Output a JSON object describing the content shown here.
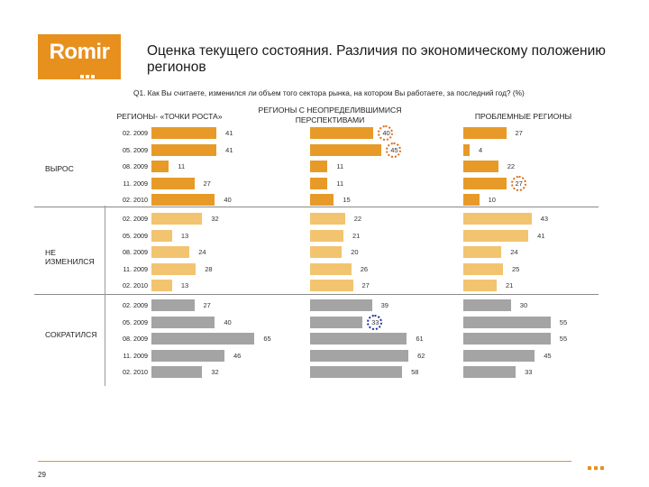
{
  "logo": {
    "text": "Romir"
  },
  "title": "Оценка текущего состояния. Различия по экономическому положению регионов",
  "question": "Q1. Как Вы считаете, изменился ли объем того сектора рынка, на котором Вы работаете, за последний год? (%)",
  "page_number": "29",
  "colors": {
    "increase": "#e89a28",
    "no_change": "#f2c470",
    "decrease": "#a4a4a4",
    "highlight_orange": "#d66d1f",
    "highlight_blue": "#1d2ea6"
  },
  "chart_data": {
    "type": "bar",
    "orientation": "horizontal",
    "periods": [
      "02. 2009",
      "05. 2009",
      "08. 2009",
      "11. 2009",
      "02. 2010"
    ],
    "groups": [
      {
        "label": "ВЫРОС",
        "key": "inc"
      },
      {
        "label": "НЕ ИЗМЕНИЛСЯ",
        "key": "same"
      },
      {
        "label": "СОКРАТИЛСЯ",
        "key": "dec"
      }
    ],
    "series": [
      {
        "name": "РЕГИОНЫ- «ТОЧКИ РОСТА»",
        "inc": [
          41,
          41,
          11,
          27,
          40
        ],
        "same": [
          32,
          13,
          24,
          28,
          13
        ],
        "dec": [
          27,
          40,
          65,
          46,
          32
        ]
      },
      {
        "name": "РЕГИОНЫ С НЕОПРЕДЕЛИВШИМИСЯ ПЕРСПЕКТИВАМИ",
        "inc": [
          40,
          45,
          11,
          11,
          15
        ],
        "same": [
          22,
          21,
          20,
          26,
          27
        ],
        "dec": [
          39,
          33,
          61,
          62,
          58
        ]
      },
      {
        "name": "ПРОБЛЕМНЫЕ РЕГИОНЫ",
        "inc": [
          27,
          4,
          22,
          27,
          10
        ],
        "same": [
          43,
          41,
          24,
          25,
          21
        ],
        "dec": [
          30,
          55,
          55,
          45,
          33
        ]
      }
    ],
    "highlights": [
      {
        "series": 1,
        "group": "inc",
        "period": 0,
        "color": "orange"
      },
      {
        "series": 1,
        "group": "inc",
        "period": 1,
        "color": "orange"
      },
      {
        "series": 2,
        "group": "inc",
        "period": 3,
        "color": "orange"
      },
      {
        "series": 1,
        "group": "dec",
        "period": 1,
        "color": "blue"
      }
    ],
    "xlim": [
      0,
      100
    ],
    "legend": "none",
    "grid": false
  }
}
